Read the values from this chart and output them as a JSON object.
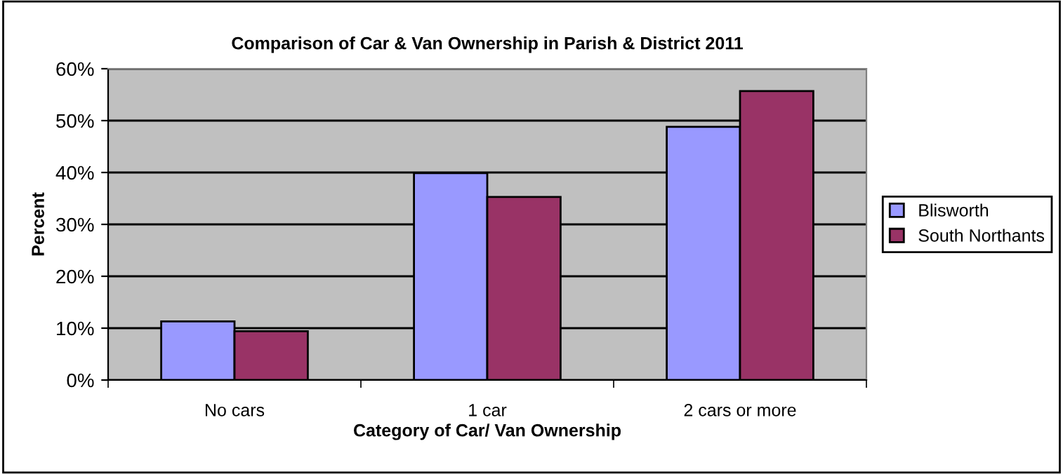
{
  "chart_data": {
    "type": "bar",
    "title": "Comparison of Car & Van Ownership in Parish & District 2011",
    "xlabel": "Category of Car/ Van Ownership",
    "ylabel": "Percent",
    "categories": [
      "No cars",
      "1 car",
      "2 cars or more"
    ],
    "series": [
      {
        "name": "Blisworth",
        "color": "#9999ff",
        "values": [
          11.3,
          39.9,
          48.8
        ]
      },
      {
        "name": "South Northants",
        "color": "#993366",
        "values": [
          9.4,
          35.3,
          55.7
        ]
      }
    ],
    "ylim": [
      0,
      60
    ],
    "yticks": [
      {
        "value": 0,
        "label": "0%"
      },
      {
        "value": 10,
        "label": "10%"
      },
      {
        "value": 20,
        "label": "20%"
      },
      {
        "value": 30,
        "label": "30%"
      },
      {
        "value": 40,
        "label": "40%"
      },
      {
        "value": 50,
        "label": "50%"
      },
      {
        "value": 60,
        "label": "60%"
      }
    ],
    "grid": "y",
    "legend": "right"
  }
}
